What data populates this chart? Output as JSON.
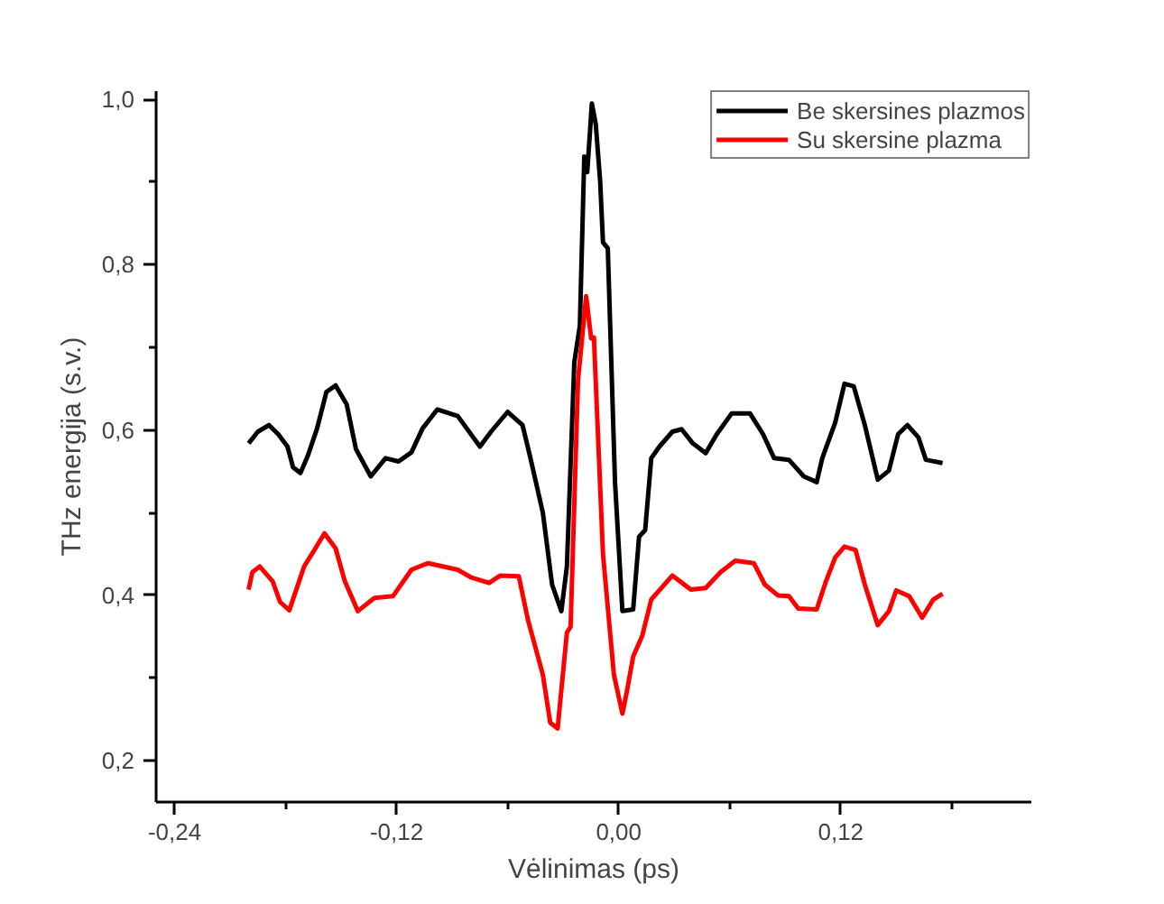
{
  "chart_data": {
    "type": "line",
    "xlabel": "Vėlinimas (ps)",
    "ylabel": "THz energija (s.v.)",
    "xlim": [
      -0.25,
      0.223
    ],
    "ylim": [
      0.15,
      1.01
    ],
    "xticks": [
      {
        "value": -0.24,
        "label": "-0,24"
      },
      {
        "value": -0.18,
        "label": null
      },
      {
        "value": -0.12,
        "label": "-0,12"
      },
      {
        "value": -0.06,
        "label": null
      },
      {
        "value": 0.0,
        "label": "0,00"
      },
      {
        "value": 0.06,
        "label": null
      },
      {
        "value": 0.12,
        "label": "0,12"
      },
      {
        "value": 0.18,
        "label": null
      }
    ],
    "yticks": [
      {
        "value": 0.2,
        "label": "0,2"
      },
      {
        "value": 0.3,
        "label": null
      },
      {
        "value": 0.4,
        "label": "0,4"
      },
      {
        "value": 0.5,
        "label": null
      },
      {
        "value": 0.6,
        "label": "0,6"
      },
      {
        "value": 0.7,
        "label": null
      },
      {
        "value": 0.8,
        "label": "0,8"
      },
      {
        "value": 0.9,
        "label": null
      },
      {
        "value": 1.0,
        "label": "1,0"
      }
    ],
    "grid": false,
    "legend": "top right",
    "marker": "none",
    "line_style": "solid",
    "series": [
      {
        "name": "Be skersines plazmos",
        "color": "#000000",
        "x": [
          -0.2,
          -0.195,
          -0.189,
          -0.184,
          -0.179,
          -0.176,
          -0.172,
          -0.168,
          -0.163,
          -0.158,
          -0.153,
          -0.147,
          -0.142,
          -0.134,
          -0.126,
          -0.119,
          -0.112,
          -0.106,
          -0.098,
          -0.087,
          -0.075,
          -0.069,
          -0.06,
          -0.052,
          -0.048,
          -0.041,
          -0.036,
          -0.031,
          -0.028,
          -0.024,
          -0.021,
          -0.0186,
          -0.017,
          -0.0145,
          -0.0124,
          -0.01,
          -0.0085,
          -0.0059,
          -0.002,
          0.002,
          0.0078,
          0.011,
          0.0143,
          0.0176,
          0.022,
          0.029,
          0.034,
          0.04,
          0.047,
          0.053,
          0.061,
          0.071,
          0.078,
          0.084,
          0.092,
          0.1,
          0.107,
          0.11,
          0.117,
          0.122,
          0.127,
          0.133,
          0.14,
          0.146,
          0.151,
          0.156,
          0.162,
          0.166,
          0.175
        ],
        "values": [
          0.584,
          0.598,
          0.606,
          0.595,
          0.58,
          0.555,
          0.548,
          0.569,
          0.602,
          0.646,
          0.654,
          0.631,
          0.577,
          0.544,
          0.566,
          0.562,
          0.573,
          0.602,
          0.625,
          0.617,
          0.58,
          0.598,
          0.622,
          0.606,
          0.569,
          0.5,
          0.413,
          0.381,
          0.435,
          0.682,
          0.726,
          0.931,
          0.912,
          0.995,
          0.97,
          0.9,
          0.827,
          0.82,
          0.537,
          0.381,
          0.383,
          0.471,
          0.479,
          0.566,
          0.58,
          0.598,
          0.601,
          0.584,
          0.572,
          0.595,
          0.62,
          0.62,
          0.595,
          0.566,
          0.564,
          0.544,
          0.537,
          0.566,
          0.609,
          0.656,
          0.653,
          0.606,
          0.54,
          0.551,
          0.595,
          0.606,
          0.591,
          0.564,
          0.56
        ]
      },
      {
        "name": "Su skersine plazma",
        "color": "#ff0000",
        "x": [
          -0.2,
          -0.198,
          -0.194,
          -0.187,
          -0.183,
          -0.178,
          -0.17,
          -0.165,
          -0.159,
          -0.153,
          -0.148,
          -0.141,
          -0.132,
          -0.122,
          -0.112,
          -0.103,
          -0.087,
          -0.08,
          -0.07,
          -0.064,
          -0.054,
          -0.049,
          -0.041,
          -0.037,
          -0.033,
          -0.028,
          -0.026,
          -0.022,
          -0.0176,
          -0.0149,
          -0.0134,
          -0.0085,
          -0.0026,
          0.002,
          0.0046,
          0.0078,
          0.0127,
          0.0176,
          0.029,
          0.039,
          0.047,
          0.055,
          0.063,
          0.073,
          0.079,
          0.086,
          0.092,
          0.097,
          0.107,
          0.112,
          0.117,
          0.122,
          0.128,
          0.133,
          0.14,
          0.146,
          0.15,
          0.157,
          0.164,
          0.17,
          0.175
        ],
        "values": [
          0.407,
          0.428,
          0.435,
          0.417,
          0.392,
          0.382,
          0.435,
          0.453,
          0.475,
          0.457,
          0.417,
          0.381,
          0.397,
          0.399,
          0.431,
          0.439,
          0.431,
          0.422,
          0.415,
          0.424,
          0.423,
          0.37,
          0.304,
          0.246,
          0.239,
          0.355,
          0.362,
          0.66,
          0.762,
          0.711,
          0.712,
          0.45,
          0.304,
          0.257,
          0.286,
          0.326,
          0.351,
          0.395,
          0.424,
          0.407,
          0.409,
          0.428,
          0.442,
          0.439,
          0.413,
          0.4,
          0.399,
          0.384,
          0.383,
          0.417,
          0.446,
          0.459,
          0.455,
          0.413,
          0.364,
          0.381,
          0.406,
          0.399,
          0.373,
          0.395,
          0.402
        ]
      }
    ]
  }
}
